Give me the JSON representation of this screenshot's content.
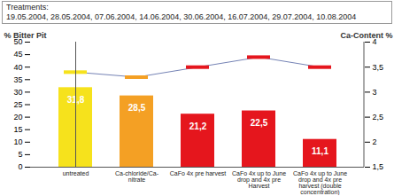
{
  "chart_data": {
    "type": "bar",
    "title": "Treatments:",
    "subtitle": "19.05.2004, 28.05.2004, 07.06.2004, 14.06.2004, 30.06.2004, 16.07.2004, 29.07.2004, 10.08.2004",
    "categories": [
      "untreated",
      "Ca-chloride/Ca-nitrate",
      "CaFo 4x pre harvest",
      "CaFo 4x up to June drop and 4x pre Harvest",
      "CaFo 4x up to June drop and 4x pre harvest (double concentration)"
    ],
    "ylabel": "% Bitter Pit",
    "y2label": "Ca-Content %",
    "ylim": [
      0,
      50
    ],
    "yticks": [
      0,
      5,
      10,
      15,
      20,
      25,
      30,
      35,
      40,
      45,
      50
    ],
    "y2lim": [
      1.5,
      4
    ],
    "y2ticks": [
      {
        "value": 1.5,
        "label": "1,5"
      },
      2,
      {
        "value": 2.5,
        "label": "2,5"
      },
      3,
      {
        "value": 3.5,
        "label": "3,5"
      },
      4
    ],
    "series": [
      {
        "type": "bar",
        "colors": [
          "#f6e21c",
          "#f4a024",
          "#e5161d",
          "#e5161d",
          "#e5161d"
        ],
        "values": [
          31.8,
          28.5,
          21.2,
          22.5,
          11.1
        ],
        "value_labels": [
          "31,8",
          "28,5",
          "21,2",
          "22,5",
          "11,1"
        ],
        "data_labels": true
      },
      {
        "type": "line",
        "axis": "y2",
        "color": "#7583b5",
        "marker": "dash",
        "colors": [
          "#f6e21c",
          "#f4a024",
          "#e5161d",
          "#e5161d",
          "#e5161d"
        ],
        "values": [
          3.4,
          3.3,
          3.5,
          3.7,
          3.5
        ]
      }
    ]
  }
}
